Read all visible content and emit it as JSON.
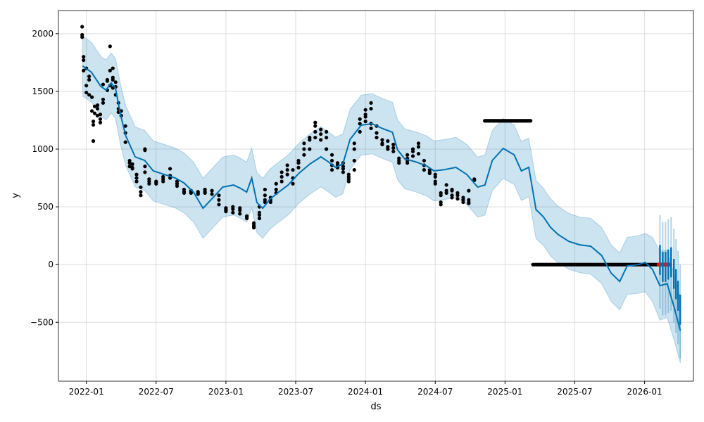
{
  "chart_data": {
    "type": "line",
    "title": "",
    "xlabel": "ds",
    "ylabel": "y",
    "xlim": [
      2021.8,
      2026.35
    ],
    "ylim": [
      -1010,
      2200
    ],
    "grid": true,
    "x_ticks": [
      {
        "value": 2022.0,
        "label": "2022-01"
      },
      {
        "value": 2022.5,
        "label": "2022-07"
      },
      {
        "value": 2023.0,
        "label": "2023-01"
      },
      {
        "value": 2023.5,
        "label": "2023-07"
      },
      {
        "value": 2024.0,
        "label": "2024-01"
      },
      {
        "value": 2024.5,
        "label": "2024-07"
      },
      {
        "value": 2025.0,
        "label": "2025-01"
      },
      {
        "value": 2025.5,
        "label": "2025-07"
      },
      {
        "value": 2026.0,
        "label": "2026-01"
      }
    ],
    "y_ticks": [
      {
        "value": 2000,
        "label": "2000"
      },
      {
        "value": 1500,
        "label": "1500"
      },
      {
        "value": 1000,
        "label": "1000"
      },
      {
        "value": 500,
        "label": "500"
      },
      {
        "value": 0,
        "label": "0"
      },
      {
        "value": -500,
        "label": "−500"
      }
    ],
    "colors": {
      "forecast": "#0072B2",
      "interval": "#0072B2",
      "observed": "#000000",
      "test": "#ff0000",
      "grid": "#dddddd"
    },
    "yhat": [
      [
        2021.974,
        1720
      ],
      [
        2022.037,
        1665
      ],
      [
        2022.104,
        1543
      ],
      [
        2022.141,
        1512
      ],
      [
        2022.178,
        1573
      ],
      [
        2022.209,
        1525
      ],
      [
        2022.245,
        1299
      ],
      [
        2022.282,
        1116
      ],
      [
        2022.35,
        933
      ],
      [
        2022.418,
        902
      ],
      [
        2022.48,
        811
      ],
      [
        2022.559,
        780
      ],
      [
        2022.637,
        750
      ],
      [
        2022.7,
        707
      ],
      [
        2022.768,
        628
      ],
      [
        2022.836,
        488
      ],
      [
        2022.898,
        567
      ],
      [
        2022.977,
        671
      ],
      [
        2023.055,
        689
      ],
      [
        2023.107,
        659
      ],
      [
        2023.149,
        628
      ],
      [
        2023.185,
        750
      ],
      [
        2023.222,
        537
      ],
      [
        2023.264,
        488
      ],
      [
        2023.316,
        567
      ],
      [
        2023.379,
        628
      ],
      [
        2023.446,
        689
      ],
      [
        2023.525,
        793
      ],
      [
        2023.603,
        872
      ],
      [
        2023.681,
        933
      ],
      [
        2023.734,
        890
      ],
      [
        2023.786,
        842
      ],
      [
        2023.838,
        872
      ],
      [
        2023.89,
        1085
      ],
      [
        2023.969,
        1207
      ],
      [
        2024.047,
        1220
      ],
      [
        2024.125,
        1177
      ],
      [
        2024.193,
        1146
      ],
      [
        2024.23,
        994
      ],
      [
        2024.282,
        915
      ],
      [
        2024.36,
        890
      ],
      [
        2024.439,
        854
      ],
      [
        2024.491,
        811
      ],
      [
        2024.569,
        823
      ],
      [
        2024.648,
        842
      ],
      [
        2024.726,
        780
      ],
      [
        2024.804,
        671
      ],
      [
        2024.856,
        689
      ],
      [
        2024.909,
        902
      ],
      [
        2024.987,
        1006
      ],
      [
        2025.065,
        951
      ],
      [
        2025.117,
        811
      ],
      [
        2025.17,
        842
      ],
      [
        2025.222,
        476
      ],
      [
        2025.274,
        415
      ],
      [
        2025.326,
        323
      ],
      [
        2025.379,
        262
      ],
      [
        2025.457,
        201
      ],
      [
        2025.535,
        171
      ],
      [
        2025.614,
        159
      ],
      [
        2025.692,
        79
      ],
      [
        2025.76,
        -73
      ],
      [
        2025.822,
        -146
      ],
      [
        2025.875,
        -12
      ],
      [
        2025.953,
        0
      ],
      [
        2026.005,
        18
      ],
      [
        2026.057,
        -43
      ],
      [
        2026.11,
        -183
      ],
      [
        2026.162,
        -165
      ],
      [
        2026.214,
        -378
      ],
      [
        2026.256,
        -573
      ]
    ],
    "interval_halfwidth": [
      [
        2021.97,
        260
      ],
      [
        2025.0,
        260
      ],
      [
        2025.5,
        240
      ],
      [
        2026.0,
        250
      ],
      [
        2026.1,
        300
      ],
      [
        2026.26,
        280
      ]
    ],
    "forecast_spikes": [
      [
        2026.11,
        170
      ],
      [
        2026.13,
        110
      ],
      [
        2026.15,
        110
      ],
      [
        2026.17,
        130
      ],
      [
        2026.19,
        150
      ],
      [
        2026.21,
        50
      ],
      [
        2026.225,
        -40
      ],
      [
        2026.24,
        -140
      ],
      [
        2026.255,
        -260
      ]
    ],
    "observed": [
      [
        2021.97,
        2060
      ],
      [
        2021.97,
        1990
      ],
      [
        2021.97,
        1970
      ],
      [
        2021.98,
        1800
      ],
      [
        2021.98,
        1770
      ],
      [
        2021.98,
        1680
      ],
      [
        2022.0,
        1700
      ],
      [
        2022.0,
        1550
      ],
      [
        2022.0,
        1490
      ],
      [
        2022.02,
        1630
      ],
      [
        2022.02,
        1600
      ],
      [
        2022.02,
        1470
      ],
      [
        2022.04,
        1450
      ],
      [
        2022.04,
        1330
      ],
      [
        2022.05,
        1240
      ],
      [
        2022.05,
        1210
      ],
      [
        2022.05,
        1070
      ],
      [
        2022.06,
        1370
      ],
      [
        2022.06,
        1310
      ],
      [
        2022.08,
        1290
      ],
      [
        2022.08,
        1380
      ],
      [
        2022.08,
        1350
      ],
      [
        2022.1,
        1230
      ],
      [
        2022.1,
        1260
      ],
      [
        2022.1,
        1300
      ],
      [
        2022.12,
        1400
      ],
      [
        2022.12,
        1430
      ],
      [
        2022.12,
        1560
      ],
      [
        2022.15,
        1600
      ],
      [
        2022.15,
        1590
      ],
      [
        2022.15,
        1510
      ],
      [
        2022.17,
        1680
      ],
      [
        2022.17,
        1890
      ],
      [
        2022.17,
        1550
      ],
      [
        2022.19,
        1700
      ],
      [
        2022.19,
        1620
      ],
      [
        2022.19,
        1600
      ],
      [
        2022.19,
        1530
      ],
      [
        2022.21,
        1580
      ],
      [
        2022.21,
        1540
      ],
      [
        2022.21,
        1470
      ],
      [
        2022.23,
        1400
      ],
      [
        2022.23,
        1350
      ],
      [
        2022.23,
        1320
      ],
      [
        2022.25,
        1330
      ],
      [
        2022.25,
        1290
      ],
      [
        2022.28,
        1200
      ],
      [
        2022.28,
        1140
      ],
      [
        2022.28,
        1060
      ],
      [
        2022.31,
        900
      ],
      [
        2022.31,
        880
      ],
      [
        2022.31,
        850
      ],
      [
        2022.33,
        840
      ],
      [
        2022.33,
        830
      ],
      [
        2022.33,
        870
      ],
      [
        2022.36,
        780
      ],
      [
        2022.36,
        750
      ],
      [
        2022.36,
        720
      ],
      [
        2022.39,
        670
      ],
      [
        2022.39,
        630
      ],
      [
        2022.39,
        600
      ],
      [
        2022.42,
        1000
      ],
      [
        2022.42,
        990
      ],
      [
        2022.42,
        850
      ],
      [
        2022.42,
        800
      ],
      [
        2022.45,
        720
      ],
      [
        2022.45,
        700
      ],
      [
        2022.45,
        740
      ],
      [
        2022.5,
        720
      ],
      [
        2022.5,
        710
      ],
      [
        2022.5,
        700
      ],
      [
        2022.55,
        760
      ],
      [
        2022.55,
        740
      ],
      [
        2022.55,
        720
      ],
      [
        2022.6,
        830
      ],
      [
        2022.6,
        770
      ],
      [
        2022.6,
        750
      ],
      [
        2022.65,
        700
      ],
      [
        2022.65,
        720
      ],
      [
        2022.65,
        680
      ],
      [
        2022.7,
        650
      ],
      [
        2022.7,
        630
      ],
      [
        2022.7,
        620
      ],
      [
        2022.75,
        640
      ],
      [
        2022.75,
        620
      ],
      [
        2022.75,
        630
      ],
      [
        2022.8,
        620
      ],
      [
        2022.8,
        630
      ],
      [
        2022.8,
        610
      ],
      [
        2022.85,
        650
      ],
      [
        2022.85,
        620
      ],
      [
        2022.85,
        630
      ],
      [
        2022.9,
        610
      ],
      [
        2022.9,
        640
      ],
      [
        2022.95,
        600
      ],
      [
        2022.95,
        560
      ],
      [
        2022.95,
        520
      ],
      [
        2023.0,
        480
      ],
      [
        2023.0,
        460
      ],
      [
        2023.0,
        470
      ],
      [
        2023.0,
        490
      ],
      [
        2023.05,
        450
      ],
      [
        2023.05,
        480
      ],
      [
        2023.05,
        500
      ],
      [
        2023.1,
        490
      ],
      [
        2023.1,
        470
      ],
      [
        2023.1,
        440
      ],
      [
        2023.15,
        420
      ],
      [
        2023.15,
        410
      ],
      [
        2023.15,
        400
      ],
      [
        2023.2,
        360
      ],
      [
        2023.2,
        330
      ],
      [
        2023.2,
        320
      ],
      [
        2023.2,
        340
      ],
      [
        2023.24,
        450
      ],
      [
        2023.24,
        400
      ],
      [
        2023.24,
        500
      ],
      [
        2023.24,
        430
      ],
      [
        2023.28,
        600
      ],
      [
        2023.28,
        650
      ],
      [
        2023.28,
        560
      ],
      [
        2023.28,
        540
      ],
      [
        2023.32,
        560
      ],
      [
        2023.32,
        580
      ],
      [
        2023.32,
        540
      ],
      [
        2023.36,
        620
      ],
      [
        2023.36,
        700
      ],
      [
        2023.36,
        650
      ],
      [
        2023.4,
        760
      ],
      [
        2023.4,
        800
      ],
      [
        2023.4,
        720
      ],
      [
        2023.44,
        820
      ],
      [
        2023.44,
        860
      ],
      [
        2023.44,
        780
      ],
      [
        2023.48,
        750
      ],
      [
        2023.48,
        700
      ],
      [
        2023.48,
        820
      ],
      [
        2023.52,
        880
      ],
      [
        2023.52,
        840
      ],
      [
        2023.52,
        900
      ],
      [
        2023.56,
        950
      ],
      [
        2023.56,
        1000
      ],
      [
        2023.56,
        1050
      ],
      [
        2023.6,
        1000
      ],
      [
        2023.6,
        1100
      ],
      [
        2023.6,
        1080
      ],
      [
        2023.64,
        1150
      ],
      [
        2023.64,
        1230
      ],
      [
        2023.64,
        1200
      ],
      [
        2023.64,
        1100
      ],
      [
        2023.68,
        1080
      ],
      [
        2023.68,
        1130
      ],
      [
        2023.68,
        1170
      ],
      [
        2023.72,
        1100
      ],
      [
        2023.72,
        1150
      ],
      [
        2023.72,
        1000
      ],
      [
        2023.76,
        950
      ],
      [
        2023.76,
        900
      ],
      [
        2023.76,
        860
      ],
      [
        2023.76,
        820
      ],
      [
        2023.8,
        880
      ],
      [
        2023.8,
        860
      ],
      [
        2023.8,
        840
      ],
      [
        2023.84,
        830
      ],
      [
        2023.84,
        800
      ],
      [
        2023.84,
        880
      ],
      [
        2023.84,
        850
      ],
      [
        2023.88,
        760
      ],
      [
        2023.88,
        740
      ],
      [
        2023.88,
        720
      ],
      [
        2023.88,
        780
      ],
      [
        2023.92,
        820
      ],
      [
        2023.92,
        900
      ],
      [
        2023.92,
        1000
      ],
      [
        2023.92,
        1050
      ],
      [
        2023.96,
        1150
      ],
      [
        2023.96,
        1220
      ],
      [
        2023.96,
        1260
      ],
      [
        2024.0,
        1280
      ],
      [
        2024.0,
        1240
      ],
      [
        2024.0,
        1300
      ],
      [
        2024.0,
        1340
      ],
      [
        2024.04,
        1400
      ],
      [
        2024.04,
        1350
      ],
      [
        2024.04,
        1220
      ],
      [
        2024.04,
        1180
      ],
      [
        2024.08,
        1200
      ],
      [
        2024.08,
        1140
      ],
      [
        2024.08,
        1100
      ],
      [
        2024.12,
        1080
      ],
      [
        2024.12,
        1050
      ],
      [
        2024.12,
        1040
      ],
      [
        2024.16,
        1020
      ],
      [
        2024.16,
        1000
      ],
      [
        2024.16,
        1070
      ],
      [
        2024.2,
        1010
      ],
      [
        2024.2,
        980
      ],
      [
        2024.2,
        1040
      ],
      [
        2024.24,
        920
      ],
      [
        2024.24,
        880
      ],
      [
        2024.24,
        900
      ],
      [
        2024.3,
        900
      ],
      [
        2024.3,
        920
      ],
      [
        2024.3,
        880
      ],
      [
        2024.3,
        950
      ],
      [
        2024.34,
        980
      ],
      [
        2024.34,
        1000
      ],
      [
        2024.34,
        940
      ],
      [
        2024.38,
        1050
      ],
      [
        2024.38,
        1020
      ],
      [
        2024.38,
        960
      ],
      [
        2024.42,
        900
      ],
      [
        2024.42,
        860
      ],
      [
        2024.42,
        820
      ],
      [
        2024.46,
        820
      ],
      [
        2024.46,
        800
      ],
      [
        2024.46,
        790
      ],
      [
        2024.5,
        780
      ],
      [
        2024.5,
        760
      ],
      [
        2024.5,
        720
      ],
      [
        2024.5,
        700
      ],
      [
        2024.54,
        620
      ],
      [
        2024.54,
        600
      ],
      [
        2024.54,
        540
      ],
      [
        2024.54,
        520
      ],
      [
        2024.58,
        640
      ],
      [
        2024.58,
        620
      ],
      [
        2024.58,
        690
      ],
      [
        2024.62,
        600
      ],
      [
        2024.62,
        580
      ],
      [
        2024.62,
        640
      ],
      [
        2024.62,
        650
      ],
      [
        2024.66,
        620
      ],
      [
        2024.66,
        600
      ],
      [
        2024.66,
        570
      ],
      [
        2024.7,
        580
      ],
      [
        2024.7,
        560
      ],
      [
        2024.7,
        540
      ],
      [
        2024.74,
        560
      ],
      [
        2024.74,
        540
      ],
      [
        2024.74,
        530
      ],
      [
        2024.74,
        640
      ],
      [
        2024.78,
        730
      ],
      [
        2024.78,
        740
      ]
    ],
    "observed_runs": [
      {
        "start": 2024.855,
        "end": 2025.19,
        "value": 1245,
        "step": 0.008
      },
      {
        "start": 2025.2,
        "end": 2026.09,
        "value": 0,
        "step": 0.008
      }
    ],
    "test_runs": [
      {
        "start": 2026.1,
        "end": 2026.19,
        "value": 0,
        "step": 0.006
      }
    ]
  }
}
